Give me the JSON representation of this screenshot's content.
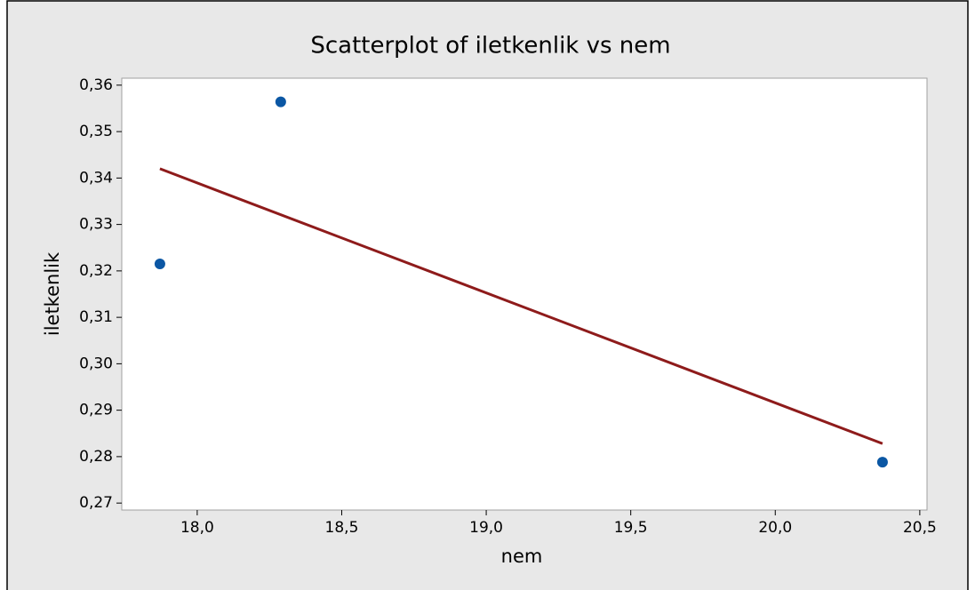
{
  "chart_data": {
    "type": "scatter",
    "title": "Scatterplot of iletkenlik vs nem",
    "x_label": "nem",
    "y_label": "iletkenlik",
    "series": [
      {
        "color": "#0b57a4",
        "x": [
          17.871,
          18.289,
          20.371
        ],
        "values": [
          0.3215,
          0.3564,
          0.2788
        ]
      }
    ],
    "fit_line": {
      "color": "#8e1b1b",
      "x": [
        17.871,
        20.371
      ],
      "values": [
        0.342,
        0.2828
      ]
    },
    "xlim": [
      17.739,
      20.525
    ],
    "ylim": [
      0.2685,
      0.3615
    ],
    "xticks": [
      {
        "value": 18,
        "label": "18,0"
      },
      {
        "value": 18.5,
        "label": "18,5"
      },
      {
        "value": 19,
        "label": "19,0"
      },
      {
        "value": 19.5,
        "label": "19,5"
      },
      {
        "value": 20,
        "label": "20,0"
      },
      {
        "value": 20.5,
        "label": "20,5"
      }
    ],
    "yticks": [
      {
        "value": 0.27,
        "label": "0,27"
      },
      {
        "value": 0.28,
        "label": "0,28"
      },
      {
        "value": 0.29,
        "label": "0,29"
      },
      {
        "value": 0.3,
        "label": "0,30"
      },
      {
        "value": 0.31,
        "label": "0,31"
      },
      {
        "value": 0.32,
        "label": "0,32"
      },
      {
        "value": 0.33,
        "label": "0,33"
      },
      {
        "value": 0.34,
        "label": "0,34"
      },
      {
        "value": 0.35,
        "label": "0,35"
      },
      {
        "value": 0.36,
        "label": "0,36"
      }
    ],
    "grid": false
  }
}
